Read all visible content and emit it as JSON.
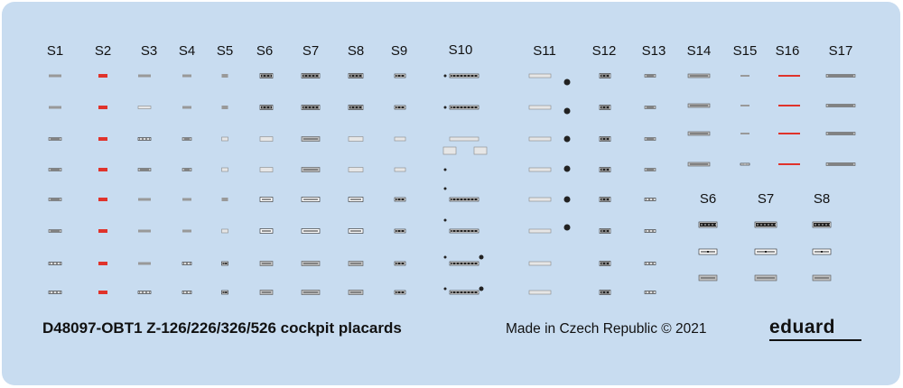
{
  "sheet": {
    "column_labels_top": [
      "S1",
      "S2",
      "S3",
      "S4",
      "S5",
      "S6",
      "S7",
      "S8",
      "S9",
      "S10",
      "S11",
      "S12",
      "S13",
      "S14",
      "S15",
      "S16",
      "S17"
    ],
    "column_labels_lower": [
      "S6",
      "S7",
      "S8"
    ],
    "code": "D48097-OBT1 Z-126/226/326/526 cockpit placards",
    "made_in": "Made in Czech Republic © 2021",
    "brand": "eduard"
  },
  "colors": {
    "background": "#c8dcf0",
    "placard_dark": "#222222",
    "placard_red": "#e0332b",
    "placard_grey": "#bfbfbf",
    "placard_light": "#e6e6e6"
  },
  "icons": [
    "decal-placard"
  ]
}
